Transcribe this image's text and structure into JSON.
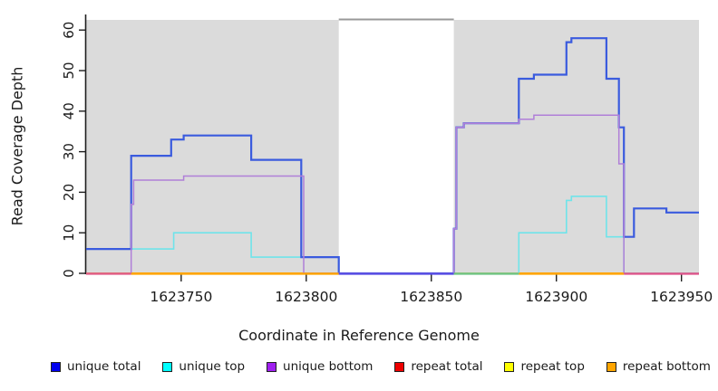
{
  "chart_data": {
    "type": "step-line",
    "title": "",
    "xlabel": "Coordinate in Reference Genome",
    "ylabel": "Read Coverage Depth",
    "xlim": [
      1623712,
      1623957
    ],
    "ylim": [
      0,
      62.5
    ],
    "x_ticks": [
      1623750,
      1623800,
      1623850,
      1623900,
      1623950
    ],
    "y_ticks": [
      0,
      10,
      20,
      30,
      40,
      50,
      60
    ],
    "grid": false,
    "background": {
      "panel_color": "#DBDBDB",
      "panel_regions": [
        {
          "from": 1623712,
          "to": 1623813
        },
        {
          "from": 1623859,
          "to": 1623957
        }
      ],
      "gap_region": {
        "from": 1623813,
        "to": 1623859
      },
      "gap_top_line_color": "#999999"
    },
    "series": [
      {
        "name": "unique total",
        "color": "#3A5BDE",
        "width": 2.2,
        "steps": [
          [
            1623712,
            6
          ],
          [
            1623730,
            29
          ],
          [
            1623746,
            33
          ],
          [
            1623751,
            34
          ],
          [
            1623778,
            28
          ],
          [
            1623798,
            4
          ],
          [
            1623813,
            0
          ],
          [
            1623859,
            11
          ],
          [
            1623860,
            36
          ],
          [
            1623863,
            37
          ],
          [
            1623885,
            48
          ],
          [
            1623891,
            49
          ],
          [
            1623904,
            57
          ],
          [
            1623906,
            58
          ],
          [
            1623920,
            48
          ],
          [
            1623925,
            36
          ],
          [
            1623927,
            9
          ],
          [
            1623931,
            16
          ],
          [
            1623944,
            15
          ]
        ]
      },
      {
        "name": "unique top",
        "color": "#6FE4EA",
        "width": 1.6,
        "steps": [
          [
            1623712,
            6
          ],
          [
            1623747,
            10
          ],
          [
            1623778,
            4
          ],
          [
            1623813,
            0
          ],
          [
            1623885,
            10
          ],
          [
            1623904,
            18
          ],
          [
            1623906,
            19
          ],
          [
            1623920,
            9
          ],
          [
            1623927,
            0
          ]
        ]
      },
      {
        "name": "unique bottom",
        "color": "#B07FD8",
        "width": 1.5,
        "steps": [
          [
            1623712,
            0
          ],
          [
            1623730,
            17
          ],
          [
            1623731,
            23
          ],
          [
            1623751,
            24
          ],
          [
            1623799,
            0
          ],
          [
            1623859,
            11
          ],
          [
            1623860,
            36
          ],
          [
            1623863,
            37
          ],
          [
            1623885,
            38
          ],
          [
            1623891,
            39
          ],
          [
            1623925,
            27
          ],
          [
            1623927,
            0
          ]
        ]
      },
      {
        "name": "repeat total",
        "color": "#E04343",
        "width": 1.8,
        "steps": [
          [
            1623712,
            0
          ]
        ]
      },
      {
        "name": "repeat top",
        "color": "#F2E93F",
        "width": 1.8,
        "steps": [
          [
            1623712,
            0
          ]
        ]
      },
      {
        "name": "repeat bottom",
        "color": "#FFA500",
        "width": 2,
        "steps": [
          [
            1623712,
            0
          ]
        ]
      }
    ],
    "baseline_segments": [
      {
        "from": 1623712,
        "to": 1623730,
        "color": "#E15B86"
      },
      {
        "from": 1623730,
        "to": 1623813,
        "color": "#FFA500"
      },
      {
        "from": 1623813,
        "to": 1623859,
        "color": "#544BE4"
      },
      {
        "from": 1623859,
        "to": 1623885,
        "color": "#6EC383"
      },
      {
        "from": 1623885,
        "to": 1623927,
        "color": "#FFA500"
      },
      {
        "from": 1623927,
        "to": 1623957,
        "color": "#E0558C"
      }
    ],
    "legend": {
      "position": "bottom",
      "entries": [
        {
          "label": "unique total",
          "color": "#0000EE"
        },
        {
          "label": "unique top",
          "color": "#00FFFF"
        },
        {
          "label": "unique bottom",
          "color": "#A020F0"
        },
        {
          "label": "repeat total",
          "color": "#EE0000"
        },
        {
          "label": "repeat top",
          "color": "#FFFF00"
        },
        {
          "label": "repeat bottom",
          "color": "#FFA500"
        }
      ]
    }
  }
}
